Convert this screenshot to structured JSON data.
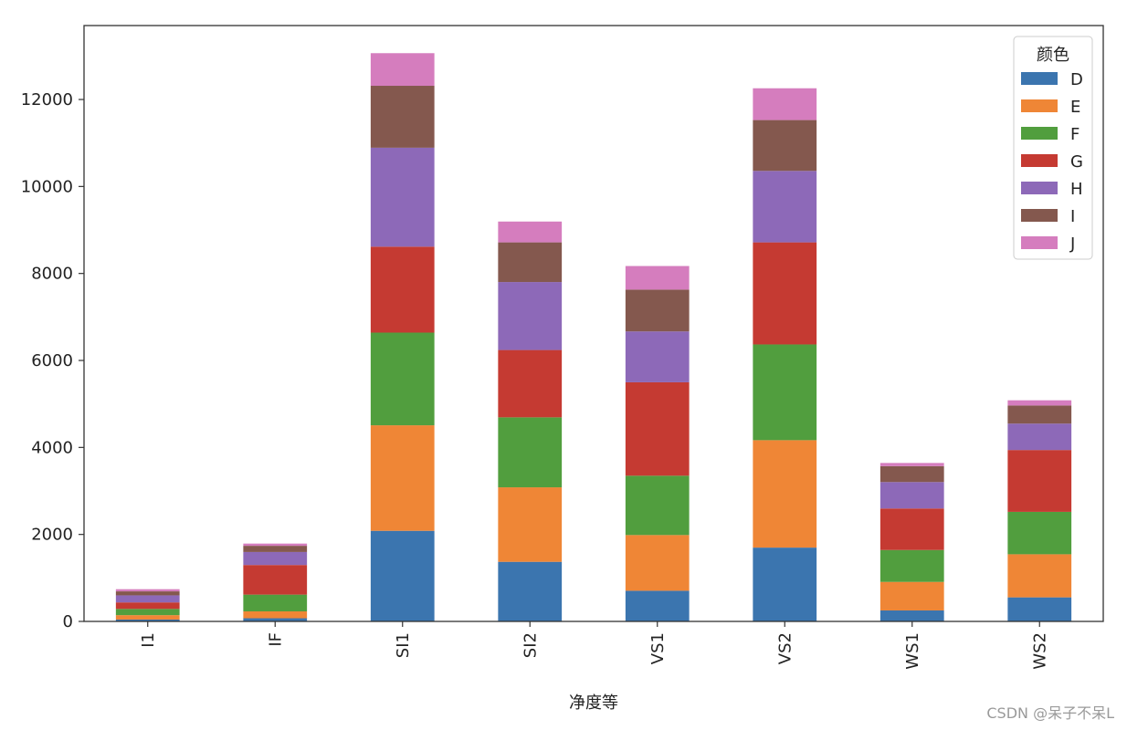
{
  "chart_data": {
    "type": "bar",
    "stacked": true,
    "categories": [
      "I1",
      "IF",
      "SI1",
      "SI2",
      "VS1",
      "VS2",
      "WS1",
      "WS2"
    ],
    "series": [
      {
        "name": "D",
        "color": "#3b75af",
        "values": [
          42,
          73,
          2083,
          1370,
          705,
          1697,
          252,
          553
        ]
      },
      {
        "name": "E",
        "color": "#ef8636",
        "values": [
          102,
          158,
          2426,
          1713,
          1281,
          2470,
          656,
          991
        ]
      },
      {
        "name": "F",
        "color": "#519e3e",
        "values": [
          143,
          385,
          2131,
          1609,
          1364,
          2201,
          734,
          975
        ]
      },
      {
        "name": "G",
        "color": "#c53a32",
        "values": [
          150,
          681,
          1976,
          1548,
          2148,
          2347,
          954,
          1422
        ]
      },
      {
        "name": "H",
        "color": "#8d69b8",
        "values": [
          162,
          299,
          2275,
          1563,
          1169,
          1643,
          608,
          607
        ]
      },
      {
        "name": "I",
        "color": "#84584e",
        "values": [
          92,
          143,
          1424,
          912,
          962,
          1169,
          365,
          417
        ]
      },
      {
        "name": "J",
        "color": "#d57dbe",
        "values": [
          50,
          51,
          750,
          479,
          542,
          731,
          74,
          119
        ]
      }
    ],
    "title": "",
    "xlabel": "净度等",
    "ylabel": "",
    "ylim": [
      0,
      13700
    ],
    "yticks": [
      0,
      2000,
      4000,
      6000,
      8000,
      10000,
      12000
    ],
    "legend": {
      "title": "颜色",
      "placement": "top-right"
    },
    "grid": false
  },
  "watermark": "CSDN @呆子不呆L"
}
